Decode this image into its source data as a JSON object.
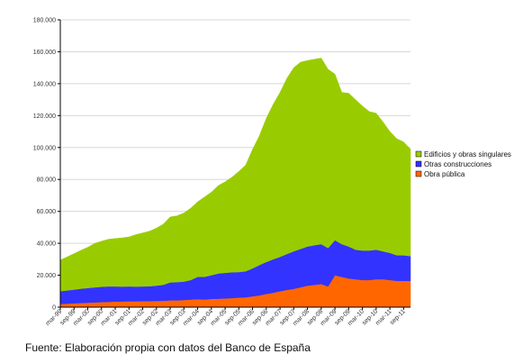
{
  "chart_data": {
    "type": "area",
    "stacked": true,
    "grid": true,
    "legend_position": "right",
    "ylim": [
      0,
      180000
    ],
    "y_ticks": [
      "0",
      "20.000",
      "40.000",
      "60.000",
      "80.000",
      "100.000",
      "120.000",
      "140.000",
      "160.000",
      "180.000"
    ],
    "y_tick_values": [
      0,
      20000,
      40000,
      60000,
      80000,
      100000,
      120000,
      140000,
      160000,
      180000
    ],
    "x": [
      "mar-99",
      "jun-99",
      "sep-99",
      "dic-99",
      "mar-00",
      "jun-00",
      "sep-00",
      "dic-00",
      "mar-01",
      "jun-01",
      "sep-01",
      "dic-01",
      "mar-02",
      "jun-02",
      "sep-02",
      "dic-02",
      "mar-03",
      "jun-03",
      "sep-03",
      "dic-03",
      "mar-04",
      "jun-04",
      "sep-04",
      "dic-04",
      "mar-05",
      "jun-05",
      "sep-05",
      "dic-05",
      "mar-06",
      "jun-06",
      "sep-06",
      "dic-06",
      "mar-07",
      "jun-07",
      "sep-07",
      "dic-07",
      "mar-08",
      "jun-08",
      "sep-08",
      "dic-08",
      "mar-09",
      "jun-09",
      "sep-09",
      "dic-09",
      "mar-10",
      "jun-10",
      "sep-10",
      "dic-10",
      "mar-11",
      "jun-11",
      "sep-11",
      "dic-11"
    ],
    "x_tick_labels": [
      "mar-99",
      "sep-99",
      "mar-00",
      "sep-00",
      "mar-01",
      "sep-01",
      "mar-02",
      "sep-02",
      "mar-03",
      "sep-03",
      "mar-04",
      "sep-04",
      "mar-05",
      "sep-05",
      "mar-06",
      "sep-06",
      "mar-07",
      "sep-07",
      "mar-08",
      "sep-08",
      "mar-09",
      "sep-09",
      "mar-10",
      "sep-10",
      "mar-11",
      "sep-11"
    ],
    "series": [
      {
        "name": "Obra pública",
        "color": "#ff6600",
        "values": [
          2000,
          2200,
          2400,
          2600,
          2800,
          3000,
          3200,
          3300,
          3500,
          3600,
          3700,
          3700,
          3800,
          3800,
          3900,
          4000,
          4300,
          4300,
          4500,
          4800,
          5000,
          4800,
          5200,
          5300,
          5500,
          5700,
          6000,
          6200,
          6800,
          7400,
          8300,
          9000,
          10000,
          10800,
          11500,
          12500,
          13500,
          14000,
          14500,
          13000,
          20000,
          19000,
          18000,
          17500,
          17000,
          17000,
          17500,
          17500,
          17000,
          16500,
          16500,
          16500
        ]
      },
      {
        "name": "Otras construcciones",
        "color": "#3333ff",
        "values": [
          8000,
          8300,
          8600,
          9000,
          9200,
          9400,
          9600,
          9700,
          9500,
          9300,
          9300,
          9200,
          9200,
          9300,
          9600,
          10000,
          11200,
          11400,
          11500,
          12200,
          14000,
          14200,
          14800,
          15800,
          16000,
          16200,
          16000,
          16300,
          17500,
          19000,
          20000,
          21000,
          21500,
          22500,
          23500,
          24000,
          24500,
          24800,
          25000,
          24000,
          22000,
          20500,
          20000,
          18500,
          18500,
          18500,
          18500,
          17500,
          17000,
          16000,
          16000,
          15500
        ]
      },
      {
        "name": "Edificios y obras singulares",
        "color": "#99cc00",
        "values": [
          19500,
          21000,
          22500,
          24000,
          25500,
          27500,
          28500,
          29500,
          30000,
          30500,
          31000,
          32500,
          33500,
          34500,
          36000,
          38000,
          41000,
          41500,
          43000,
          45000,
          47000,
          50000,
          52000,
          55000,
          57000,
          59500,
          63000,
          66500,
          74500,
          81000,
          90000,
          97000,
          103000,
          110000,
          115000,
          117000,
          116500,
          116500,
          116500,
          112000,
          104000,
          95000,
          96000,
          94000,
          90500,
          87000,
          85500,
          81000,
          76000,
          73000,
          71000,
          67000
        ]
      }
    ],
    "legend_order": [
      "Edificios y obras singulares",
      "Otras construcciones",
      "Obra pública"
    ]
  },
  "source_note": "Fuente: Elaboración propia con datos del Banco de España"
}
